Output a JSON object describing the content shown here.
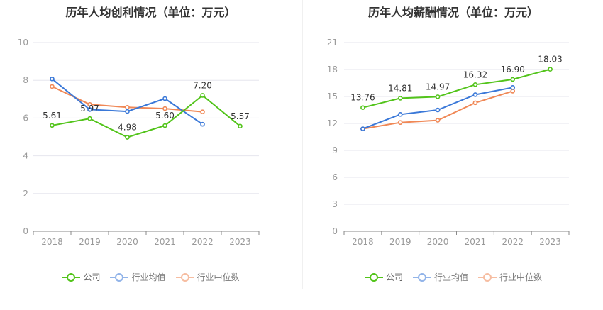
{
  "colors": {
    "company": "#52c41a",
    "industry_avg": "#3a78d8",
    "industry_median": "#f08856"
  },
  "chart_data": [
    {
      "type": "line",
      "title": "历年人均创利情况（单位：万元）",
      "categories": [
        "2018",
        "2019",
        "2020",
        "2021",
        "2022",
        "2023"
      ],
      "ylim": [
        0,
        10
      ],
      "yticks": [
        "0",
        "2",
        "4",
        "6",
        "8",
        "10"
      ],
      "grid": true,
      "legend_position": "bottom",
      "series": [
        {
          "name": "公司",
          "color": "#52c41a",
          "values": [
            5.61,
            5.97,
            4.98,
            5.6,
            7.2,
            5.57
          ],
          "labels": [
            "5.61",
            "5.97",
            "4.98",
            "5.60",
            "7.20",
            "5.57"
          ]
        },
        {
          "name": "行业均值",
          "color": "#3a78d8",
          "values": [
            8.07,
            6.45,
            6.35,
            7.03,
            5.67,
            null
          ]
        },
        {
          "name": "行业中位数",
          "color": "#f08856",
          "values": [
            7.67,
            6.72,
            6.57,
            6.5,
            6.33,
            null
          ]
        }
      ]
    },
    {
      "type": "line",
      "title": "历年人均薪酬情况（单位：万元）",
      "categories": [
        "2018",
        "2019",
        "2020",
        "2021",
        "2022",
        "2023"
      ],
      "ylim": [
        0,
        21
      ],
      "yticks": [
        "0",
        "3",
        "6",
        "9",
        "12",
        "15",
        "18",
        "21"
      ],
      "grid": true,
      "legend_position": "bottom",
      "series": [
        {
          "name": "公司",
          "color": "#52c41a",
          "values": [
            13.76,
            14.81,
            14.97,
            16.32,
            16.9,
            18.03
          ],
          "labels": [
            "13.76",
            "14.81",
            "14.97",
            "16.32",
            "16.90",
            "18.03"
          ]
        },
        {
          "name": "行业均值",
          "color": "#3a78d8",
          "values": [
            11.4,
            13.0,
            13.5,
            15.2,
            16.0,
            null
          ]
        },
        {
          "name": "行业中位数",
          "color": "#f08856",
          "values": [
            11.4,
            12.1,
            12.35,
            14.3,
            15.6,
            null
          ]
        }
      ]
    }
  ],
  "legend": {
    "company": "公司",
    "industry_avg": "行业均值",
    "industry_median": "行业中位数"
  }
}
